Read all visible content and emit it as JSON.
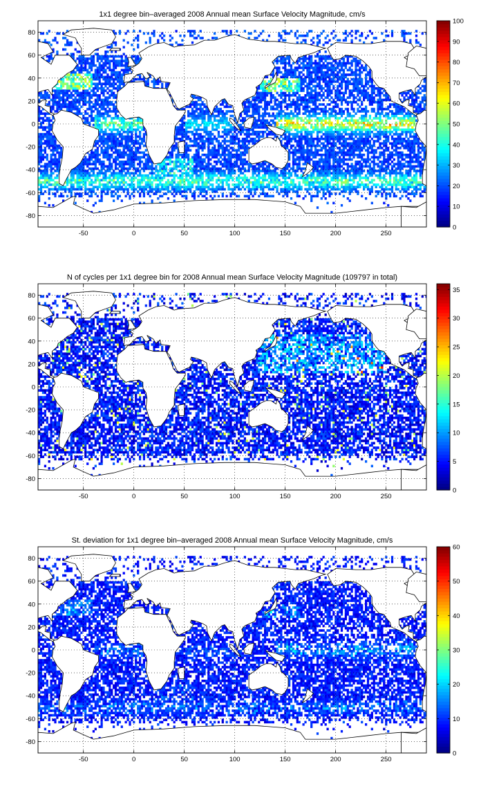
{
  "chart_data": [
    {
      "type": "heatmap",
      "title": "1x1 degree bin–averaged 2008 Annual mean Surface Velocity Magnitude, cm/s",
      "xlim": [
        -95,
        290
      ],
      "ylim": [
        -90,
        90
      ],
      "x_ticks": [
        -50,
        0,
        50,
        100,
        150,
        200,
        250
      ],
      "y_ticks": [
        -80,
        -60,
        -40,
        -20,
        0,
        20,
        40,
        60,
        80
      ],
      "grid": true,
      "grid_style": "dotted",
      "colormap": "jet",
      "colorbar": {
        "min": 0,
        "max": 100,
        "ticks": [
          0,
          10,
          20,
          30,
          40,
          50,
          60,
          70,
          80,
          90,
          100
        ],
        "placement": "right"
      },
      "field": "mean_speed",
      "vmax": 100
    },
    {
      "type": "heatmap",
      "title": "N of cycles per 1x1 degree bin for 2008 Annual mean Surface Velocity Magnitude (109797 in total)",
      "xlim": [
        -95,
        290
      ],
      "ylim": [
        -90,
        90
      ],
      "x_ticks": [
        -50,
        0,
        50,
        100,
        150,
        200,
        250
      ],
      "y_ticks": [
        -80,
        -60,
        -40,
        -20,
        0,
        20,
        40,
        60,
        80
      ],
      "grid": true,
      "grid_style": "dotted",
      "colormap": "jet",
      "colorbar": {
        "min": 0,
        "max": 36,
        "ticks": [
          0,
          5,
          10,
          15,
          20,
          25,
          30,
          35
        ],
        "placement": "right"
      },
      "field": "cycle_count",
      "vmax": 36
    },
    {
      "type": "heatmap",
      "title": "St. deviation for 1x1 degree bin–averaged 2008 Annual mean Surface Velocity Magnitude, cm/s",
      "xlim": [
        -95,
        290
      ],
      "ylim": [
        -90,
        90
      ],
      "x_ticks": [
        -50,
        0,
        50,
        100,
        150,
        200,
        250
      ],
      "y_ticks": [
        -80,
        -60,
        -40,
        -20,
        0,
        20,
        40,
        60,
        80
      ],
      "grid": true,
      "grid_style": "dotted",
      "colormap": "jet",
      "colorbar": {
        "min": 0,
        "max": 60,
        "ticks": [
          0,
          10,
          20,
          30,
          40,
          50,
          60
        ],
        "placement": "right"
      },
      "field": "std_speed",
      "vmax": 60
    }
  ]
}
